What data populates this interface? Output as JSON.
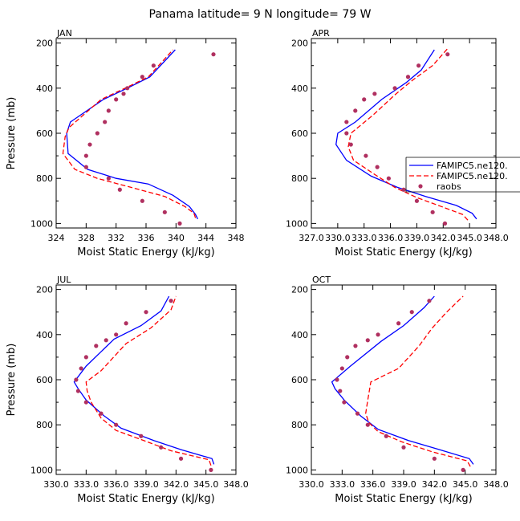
{
  "figure": {
    "title": "Panama latitude= 9 N longitude= 79 W",
    "colors": {
      "model1": "#0000ff",
      "model2": "#ff0000",
      "obs": "#b03060"
    },
    "legend": {
      "entries": [
        "FAMIPC5.ne120.",
        "FAMIPC5.ne120.",
        "raobs"
      ],
      "location": "upper-right panel, right side"
    }
  },
  "chart_data": [
    {
      "type": "line",
      "title": "JAN",
      "xlabel": "Moist Static Energy (kJ/kg)",
      "ylabel": "Pressure (mb)",
      "xlim": [
        324,
        348
      ],
      "ylim": [
        1000,
        200
      ],
      "xticks": [
        324,
        328,
        332,
        336,
        340,
        344,
        348
      ],
      "xtick_labels": [
        "324",
        "328",
        "332",
        "336",
        "340",
        "344",
        "348"
      ],
      "yticks": [
        200,
        400,
        600,
        800,
        1000
      ],
      "series": [
        {
          "name": "FAMIPC5.ne120.",
          "style": "solid",
          "color": "#0000ff",
          "x": [
            342.9,
            342.6,
            341.8,
            339.6,
            336.3,
            332.0,
            328.2,
            325.6,
            325.4,
            325.9,
            330.3,
            333.5,
            336.5,
            339.9
          ],
          "y": [
            980,
            960,
            925,
            875,
            825,
            800,
            760,
            690,
            600,
            550,
            450,
            400,
            350,
            230
          ]
        },
        {
          "name": "FAMIPC5.ne120.",
          "style": "dashed",
          "color": "#ff0000",
          "x": [
            342.6,
            342.4,
            341.2,
            338.5,
            334.0,
            329.5,
            326.5,
            324.9,
            325.2,
            325.7,
            330.0,
            333.2,
            336.3,
            339.6
          ],
          "y": [
            975,
            955,
            925,
            880,
            840,
            800,
            760,
            690,
            615,
            575,
            450,
            400,
            350,
            230
          ]
        },
        {
          "name": "raobs",
          "style": "markers",
          "color": "#b03060",
          "x": [
            340.5,
            338.5,
            335.5,
            332.5,
            331.0,
            328.0,
            328.0,
            328.5,
            329.5,
            330.5,
            331.0,
            332.0,
            333.0,
            333.5,
            335.5,
            337.0,
            345.0
          ],
          "y": [
            1000,
            950,
            900,
            850,
            800,
            750,
            700,
            650,
            600,
            550,
            500,
            450,
            425,
            400,
            350,
            300,
            250
          ]
        }
      ]
    },
    {
      "type": "line",
      "title": "APR",
      "xlabel": "Moist Static Energy (kJ/kg)",
      "ylabel": "",
      "xlim": [
        327.0,
        348.0
      ],
      "ylim": [
        1000,
        200
      ],
      "xticks": [
        327.0,
        330.0,
        333.0,
        336.0,
        339.0,
        342.0,
        345.0,
        348.0
      ],
      "xtick_labels": [
        "327.0",
        "330.0",
        "333.0",
        "336.0",
        "339.0",
        "342.0",
        "345.0",
        "348.0"
      ],
      "yticks": [
        200,
        400,
        600,
        800,
        1000
      ],
      "series": [
        {
          "name": "FAMIPC5.ne120.",
          "style": "solid",
          "color": "#0000ff",
          "x": [
            345.8,
            345.3,
            343.5,
            340.0,
            336.8,
            333.8,
            331.0,
            329.8,
            330.0,
            332.0,
            335.0,
            337.8,
            339.5,
            341.0
          ],
          "y": [
            980,
            955,
            920,
            880,
            840,
            790,
            720,
            650,
            600,
            550,
            450,
            375,
            320,
            230
          ]
        },
        {
          "name": "FAMIPC5.ne120.",
          "style": "dashed",
          "color": "#ff0000",
          "x": [
            344.8,
            344.2,
            341.8,
            339.0,
            336.5,
            334.3,
            331.8,
            331.2,
            331.5,
            334.0,
            336.5,
            338.5,
            340.8,
            342.5
          ],
          "y": [
            985,
            960,
            925,
            885,
            840,
            785,
            720,
            660,
            600,
            520,
            430,
            365,
            300,
            225
          ]
        },
        {
          "name": "raobs",
          "style": "markers",
          "color": "#b03060",
          "x": [
            342.2,
            340.8,
            339.0,
            337.5,
            335.8,
            334.5,
            333.2,
            331.5,
            331.0,
            331.0,
            332.0,
            333.0,
            334.2,
            336.5,
            338.0,
            339.2,
            342.5
          ],
          "y": [
            1000,
            950,
            900,
            850,
            800,
            750,
            700,
            650,
            600,
            550,
            500,
            450,
            425,
            400,
            350,
            300,
            250
          ]
        }
      ]
    },
    {
      "type": "line",
      "title": "JUL",
      "xlabel": "Moist Static Energy (kJ/kg)",
      "ylabel": "Pressure (mb)",
      "xlim": [
        330.0,
        348.0
      ],
      "ylim": [
        1000,
        200
      ],
      "xticks": [
        330.0,
        333.0,
        336.0,
        339.0,
        342.0,
        345.0,
        348.0
      ],
      "xtick_labels": [
        "330.0",
        "333.0",
        "336.0",
        "339.0",
        "342.0",
        "345.0",
        "348.0"
      ],
      "yticks": [
        200,
        400,
        600,
        800,
        1000
      ],
      "series": [
        {
          "name": "FAMIPC5.ne120.",
          "style": "solid",
          "color": "#0000ff",
          "x": [
            345.8,
            345.6,
            342.5,
            339.8,
            336.5,
            334.8,
            333.0,
            332.2,
            331.8,
            333.0,
            335.8,
            338.5,
            340.5,
            341.3
          ],
          "y": [
            975,
            950,
            910,
            870,
            815,
            760,
            690,
            640,
            610,
            540,
            420,
            360,
            295,
            230
          ]
        },
        {
          "name": "FAMIPC5.ne120.",
          "style": "dashed",
          "color": "#ff0000",
          "x": [
            345.5,
            345.3,
            341.5,
            338.8,
            336.0,
            334.5,
            333.5,
            333.1,
            333.0,
            334.5,
            337.0,
            339.5,
            341.5,
            342.0
          ],
          "y": [
            980,
            955,
            915,
            870,
            825,
            770,
            700,
            650,
            610,
            560,
            440,
            370,
            290,
            230
          ]
        },
        {
          "name": "raobs",
          "style": "markers",
          "color": "#b03060",
          "x": [
            345.5,
            342.5,
            340.5,
            338.5,
            336.0,
            334.5,
            333.0,
            332.2,
            332.0,
            332.5,
            333.0,
            334.0,
            335.0,
            336.0,
            337.0,
            339.0,
            341.5
          ],
          "y": [
            1000,
            950,
            900,
            850,
            800,
            750,
            700,
            650,
            600,
            550,
            500,
            450,
            425,
            400,
            350,
            300,
            250
          ]
        }
      ]
    },
    {
      "type": "line",
      "title": "OCT",
      "xlabel": "Moist Static Energy (kJ/kg)",
      "ylabel": "",
      "xlim": [
        330.0,
        348.0
      ],
      "ylim": [
        1000,
        200
      ],
      "xticks": [
        330.0,
        333.0,
        336.0,
        339.0,
        342.0,
        345.0,
        348.0
      ],
      "xtick_labels": [
        "330.0",
        "333.0",
        "336.0",
        "339.0",
        "342.0",
        "345.0",
        "348.0"
      ],
      "yticks": [
        200,
        400,
        600,
        800,
        1000
      ],
      "series": [
        {
          "name": "FAMIPC5.ne120.",
          "style": "solid",
          "color": "#0000ff",
          "x": [
            345.8,
            345.4,
            342.5,
            339.5,
            336.5,
            334.8,
            333.2,
            332.3,
            332.0,
            333.8,
            336.8,
            339.0,
            341.0,
            342.0
          ],
          "y": [
            975,
            950,
            910,
            870,
            820,
            760,
            690,
            640,
            610,
            540,
            430,
            360,
            280,
            230
          ]
        },
        {
          "name": "FAMIPC5.ne120.",
          "style": "dashed",
          "color": "#ff0000",
          "x": [
            345.5,
            345.2,
            341.8,
            338.8,
            336.5,
            335.6,
            335.3,
            335.5,
            335.8,
            338.5,
            340.5,
            341.8,
            343.2,
            344.8
          ],
          "y": [
            985,
            960,
            920,
            875,
            830,
            790,
            750,
            690,
            610,
            550,
            450,
            370,
            300,
            230
          ]
        },
        {
          "name": "raobs",
          "style": "markers",
          "color": "#b03060",
          "x": [
            344.8,
            342.0,
            339.0,
            337.3,
            335.5,
            334.5,
            333.2,
            332.8,
            332.5,
            333.0,
            333.5,
            334.3,
            335.5,
            336.5,
            338.5,
            339.8,
            341.5
          ],
          "y": [
            1000,
            950,
            900,
            850,
            800,
            750,
            700,
            650,
            600,
            550,
            500,
            450,
            425,
            400,
            350,
            300,
            250
          ]
        }
      ]
    }
  ]
}
